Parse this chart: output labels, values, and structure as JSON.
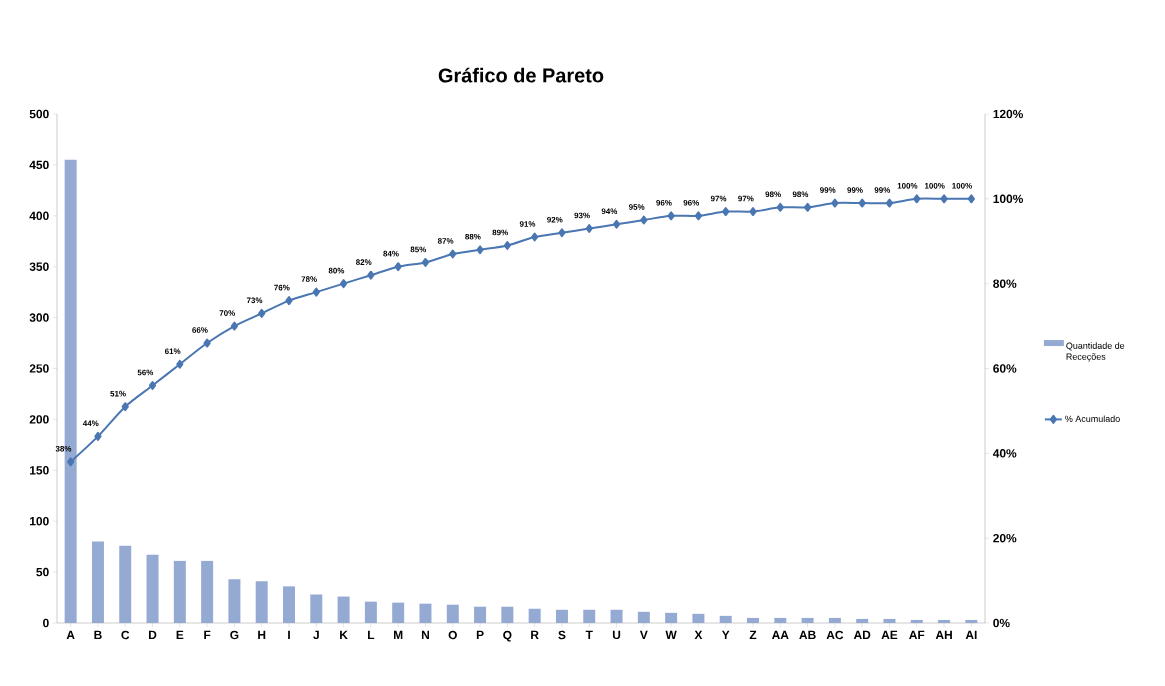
{
  "chart_data": {
    "type": "bar",
    "title": "Gráfico de Pareto",
    "categories": [
      "A",
      "B",
      "C",
      "D",
      "E",
      "F",
      "G",
      "H",
      "I",
      "J",
      "K",
      "L",
      "M",
      "N",
      "O",
      "P",
      "Q",
      "R",
      "S",
      "T",
      "U",
      "V",
      "W",
      "X",
      "Y",
      "Z",
      "AA",
      "AB",
      "AC",
      "AD",
      "AE",
      "AF",
      "AH",
      "AI"
    ],
    "series": [
      {
        "name": "Quantidade de Receções",
        "color": "#95aad3",
        "values": [
          455,
          80,
          76,
          67,
          61,
          61,
          43,
          41,
          36,
          28,
          26,
          21,
          20,
          19,
          18,
          16,
          16,
          14,
          13,
          13,
          13,
          11,
          10,
          9,
          7,
          5,
          5,
          5,
          5,
          4,
          4,
          3,
          3,
          3
        ]
      },
      {
        "name": "% Acumulado",
        "type": "line",
        "axis": "y2",
        "color": "#4a76b2",
        "marker": "diamond",
        "line_style": "solid",
        "values": [
          38,
          44,
          51,
          56,
          61,
          66,
          70,
          73,
          76,
          78,
          80,
          82,
          84,
          85,
          87,
          88,
          89,
          91,
          92,
          93,
          94,
          95,
          96,
          96,
          97,
          97,
          98,
          98,
          99,
          99,
          99,
          100,
          100,
          100
        ],
        "value_labels": [
          "38%",
          "44%",
          "51%",
          "56%",
          "61%",
          "66%",
          "70%",
          "73%",
          "76%",
          "78%",
          "80%",
          "82%",
          "84%",
          "85%",
          "87%",
          "88%",
          "89%",
          "91%",
          "92%",
          "93%",
          "94%",
          "95%",
          "96%",
          "96%",
          "97%",
          "97%",
          "98%",
          "98%",
          "99%",
          "99%",
          "99%",
          "100%",
          "100%",
          "100%"
        ]
      }
    ],
    "ylim": [
      0,
      500
    ],
    "yticks": [
      0,
      50,
      100,
      150,
      200,
      250,
      300,
      350,
      400,
      450,
      500
    ],
    "y2lim": [
      0,
      120
    ],
    "y2ticks": [
      {
        "value": 0,
        "label": "0%"
      },
      {
        "value": 20,
        "label": "20%"
      },
      {
        "value": 40,
        "label": "40%"
      },
      {
        "value": 60,
        "label": "60%"
      },
      {
        "value": 80,
        "label": "80%"
      },
      {
        "value": 100,
        "label": "100%"
      },
      {
        "value": 120,
        "label": "120%"
      }
    ],
    "legend": "right"
  }
}
